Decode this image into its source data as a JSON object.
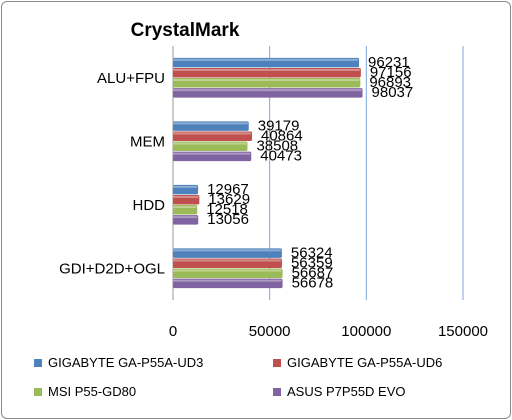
{
  "chart_data": {
    "type": "bar",
    "orientation": "horizontal",
    "title": "CrystalMark",
    "categories": [
      "ALU+FPU",
      "MEM",
      "HDD",
      "GDI+D2D+OGL"
    ],
    "series": [
      {
        "name": "GIGABYTE GA-P55A-UD3",
        "color": "#4f81bd",
        "values": [
          96231,
          39179,
          12967,
          56324
        ]
      },
      {
        "name": "GIGABYTE GA-P55A-UD6",
        "color": "#c0504d",
        "values": [
          97156,
          40864,
          13629,
          56359
        ]
      },
      {
        "name": "MSI P55-GD80",
        "color": "#9bbb59",
        "values": [
          96893,
          38508,
          12518,
          56687
        ]
      },
      {
        "name": "ASUS P7P55D EVO",
        "color": "#8064a2",
        "values": [
          98037,
          40473,
          13056,
          56678
        ]
      }
    ],
    "xlim": [
      0,
      150000
    ],
    "xticks": [
      0,
      50000,
      100000,
      150000
    ],
    "grid": true,
    "legend_position": "bottom",
    "data_labels": true
  }
}
